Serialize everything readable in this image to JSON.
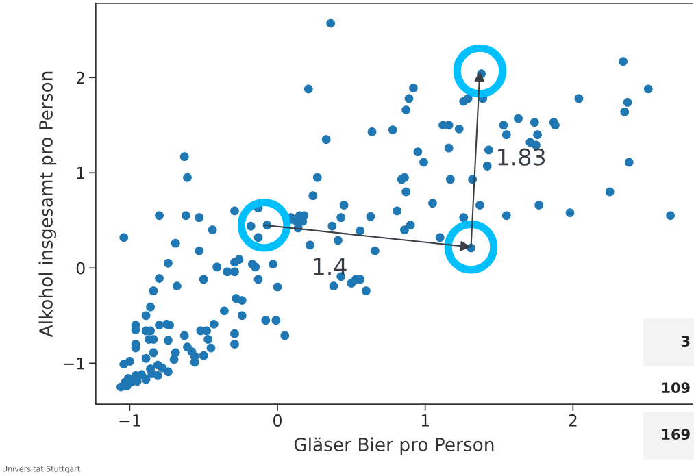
{
  "chart_data": {
    "type": "scatter",
    "xlabel": "Gläser Bier pro Person",
    "ylabel": "Alkohol insgesamt pro Person",
    "xlim": [
      -1.23,
      2.81
    ],
    "ylim": [
      -1.43,
      2.78
    ],
    "xticks": [
      {
        "value": -1,
        "label": "−1"
      },
      0,
      1,
      2
    ],
    "yticks": [
      {
        "value": -1,
        "label": "−1"
      },
      0,
      1,
      2
    ],
    "grid": false,
    "legend": false,
    "marker": "circle",
    "annotations": [
      "1.4",
      "1.83",
      "3",
      "109",
      "169",
      "Universität Stuttgart"
    ],
    "series": [
      {
        "color": "#1f77b4",
        "x": [
          -0.63,
          -0.61,
          -0.8,
          -0.62,
          -0.53,
          -0.29,
          -0.13,
          0.09,
          0.15,
          -1.04,
          -0.44,
          -0.69,
          -0.53,
          -0.18,
          -0.07,
          -0.13,
          0.1,
          0.14,
          -0.74,
          -0.8,
          -0.84,
          -0.68,
          -0.5,
          -0.41,
          -0.34,
          -0.29,
          -0.29,
          -0.26,
          -0.17,
          -0.15,
          -0.03,
          -0.13,
          0.0,
          -0.28,
          -0.24,
          -0.36,
          -0.24,
          -0.08,
          -0.01,
          0.05,
          -0.86,
          -0.89,
          -0.96,
          -0.96,
          -0.89,
          -0.86,
          -0.8,
          -0.75,
          -0.73,
          -0.87,
          -0.84,
          -0.74,
          -0.63,
          -0.52,
          -0.48,
          -0.43,
          -0.47,
          -0.29,
          -0.29,
          -0.96,
          -0.96,
          -0.61,
          -0.58,
          -0.56,
          -0.5,
          -0.45,
          -0.69,
          -0.7,
          -0.89,
          -0.84,
          -0.56,
          -1.04,
          -1.0,
          -0.81,
          -0.78,
          -0.74,
          -0.86,
          -0.81,
          -0.92,
          -0.96,
          -1.01,
          -0.99,
          -1.03,
          -1.06,
          -1.02,
          -0.89,
          -0.95,
          -0.85,
          0.36,
          0.21,
          0.92,
          0.89,
          0.87,
          0.64,
          0.78,
          0.33,
          1.12,
          1.16,
          1.23,
          1.38,
          1.39,
          1.26,
          1.29,
          0.95,
          0.99,
          1.16,
          1.43,
          1.42,
          0.27,
          0.24,
          0.45,
          0.86,
          0.84,
          0.87,
          1.05,
          0.81,
          1.17,
          1.32,
          1.37,
          0.18,
          0.43,
          0.63,
          1.26,
          0.13,
          0.17,
          0.37,
          0.56,
          0.41,
          0.22,
          0.66,
          0.9,
          0.86,
          1.1,
          1.31,
          0.43,
          0.38,
          0.5,
          0.53,
          0.56,
          0.6,
          2.34,
          2.51,
          2.37,
          2.35,
          2.04,
          1.53,
          1.63,
          1.74,
          1.87,
          1.88,
          1.55,
          1.76,
          1.71,
          1.75,
          2.38,
          2.25,
          1.77,
          1.55,
          1.98,
          2.66
        ],
        "values": [
          1.17,
          0.95,
          0.55,
          0.55,
          0.53,
          0.6,
          0.63,
          0.53,
          0.55,
          0.32,
          0.4,
          0.26,
          0.18,
          0.44,
          0.45,
          0.32,
          0.51,
          0.42,
          0.05,
          -0.11,
          -0.24,
          -0.19,
          -0.12,
          0.01,
          -0.04,
          -0.04,
          0.06,
          0.09,
          0.04,
          0.01,
          0.04,
          -0.12,
          -0.2,
          -0.32,
          -0.34,
          -0.45,
          -0.5,
          -0.55,
          -0.55,
          -0.71,
          -0.41,
          -0.5,
          -0.6,
          -0.65,
          -0.66,
          -0.66,
          -0.6,
          -0.59,
          -0.6,
          -0.75,
          -0.75,
          -0.76,
          -0.71,
          -0.66,
          -0.66,
          -0.59,
          -0.75,
          -0.69,
          -0.8,
          -0.8,
          -0.84,
          -0.83,
          -0.88,
          -0.93,
          -0.92,
          -0.84,
          -0.89,
          -0.96,
          -0.95,
          -0.89,
          -0.99,
          -1.01,
          -0.98,
          -1.02,
          -1.05,
          -1.09,
          -1.06,
          -1.13,
          -1.12,
          -1.13,
          -1.16,
          -1.2,
          -1.2,
          -1.25,
          -1.24,
          -1.17,
          -1.19,
          -1.11,
          2.57,
          1.88,
          1.89,
          1.78,
          1.66,
          1.43,
          1.45,
          1.35,
          1.5,
          1.5,
          1.46,
          2.04,
          1.78,
          1.75,
          1.78,
          1.22,
          1.11,
          1.26,
          1.24,
          1.07,
          0.95,
          0.76,
          0.66,
          0.95,
          0.93,
          0.8,
          0.68,
          0.6,
          0.93,
          0.93,
          0.66,
          0.55,
          0.53,
          0.54,
          0.53,
          0.49,
          0.49,
          0.44,
          0.39,
          0.29,
          0.24,
          0.18,
          0.45,
          0.4,
          0.32,
          0.21,
          -0.09,
          -0.19,
          -0.16,
          -0.12,
          -0.12,
          -0.24,
          2.17,
          1.88,
          1.74,
          1.64,
          1.78,
          1.5,
          1.57,
          1.53,
          1.53,
          1.5,
          1.4,
          1.4,
          1.32,
          1.29,
          1.11,
          0.8,
          0.66,
          0.55,
          0.58,
          0.55
        ]
      },
      {
        "color": "#00bfff",
        "x": [
          -0.09,
          1.31,
          1.37
        ],
        "values": [
          0.45,
          0.22,
          2.07
        ]
      }
    ]
  }
}
